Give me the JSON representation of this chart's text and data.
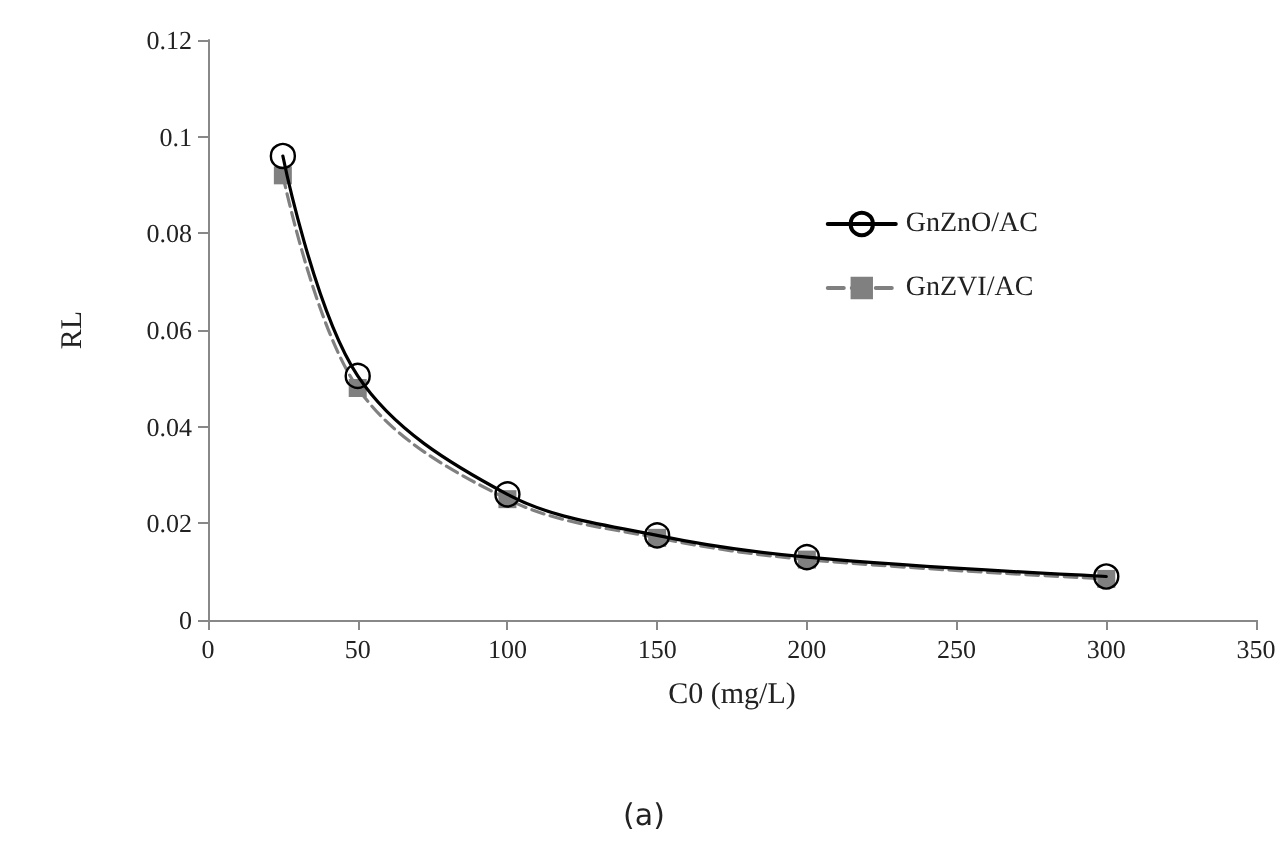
{
  "chart_data": {
    "type": "line",
    "xlabel": "C0 (mg/L)",
    "ylabel": "RL",
    "annotations": [
      "(a)"
    ],
    "x": [
      25,
      50,
      100,
      150,
      200,
      300
    ],
    "series": [
      {
        "name": "GnZnO/AC",
        "color": "#000000",
        "marker": "circle",
        "line_style": "solid",
        "values": [
          0.096,
          0.0505,
          0.026,
          0.0175,
          0.013,
          0.009
        ]
      },
      {
        "name": "GnZVI/AC",
        "color": "#808080",
        "marker": "square",
        "line_style": "dashed",
        "values": [
          0.092,
          0.048,
          0.025,
          0.017,
          0.0125,
          0.0085
        ]
      }
    ],
    "xlim": [
      0,
      350
    ],
    "xticks": [
      0,
      50,
      100,
      150,
      200,
      250,
      300,
      350
    ],
    "ylim": [
      0,
      0.12
    ],
    "yticks": [
      0,
      0.02,
      0.04,
      0.06,
      0.08,
      0.1,
      0.12
    ],
    "grid": false,
    "legend": "right"
  }
}
